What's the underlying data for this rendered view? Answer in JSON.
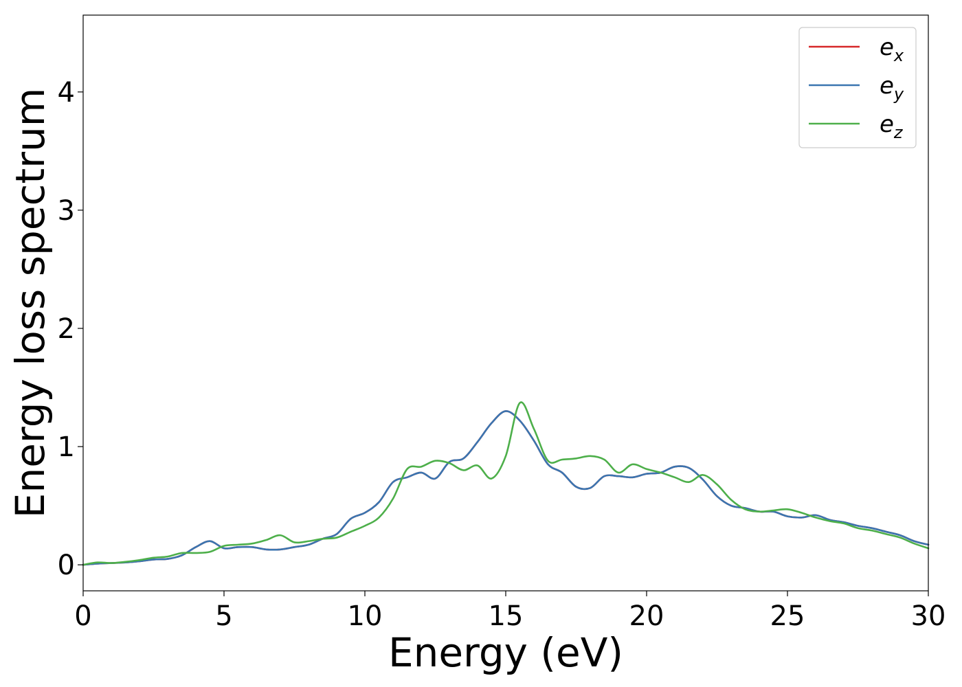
{
  "chart_data": {
    "type": "line",
    "xlabel": "Energy (eV)",
    "ylabel": "Energy loss spectrum",
    "xlim": [
      0,
      30
    ],
    "ylim": [
      -0.22,
      4.65
    ],
    "xticks": [
      0,
      5,
      10,
      15,
      20,
      25,
      30
    ],
    "yticks": [
      0,
      1,
      2,
      3,
      4
    ],
    "xtick_labels": [
      "0",
      "5",
      "10",
      "15",
      "20",
      "25",
      "30"
    ],
    "ytick_labels": [
      "0",
      "1",
      "2",
      "3",
      "4"
    ],
    "grid": false,
    "legend_position": "top-right",
    "series": [
      {
        "name": "e",
        "subscript": "x",
        "color": "#d62728",
        "x": [
          0,
          0.5,
          1,
          1.5,
          2,
          2.5,
          3,
          3.5,
          4,
          4.5,
          5,
          5.5,
          6,
          6.5,
          7,
          7.5,
          8,
          8.5,
          9,
          9.5,
          10,
          10.5,
          11,
          11.5,
          12,
          12.5,
          13,
          13.5,
          14,
          14.5,
          15,
          15.5,
          16,
          16.5,
          17,
          17.5,
          18,
          18.5,
          19,
          19.5,
          20,
          20.5,
          21,
          21.5,
          22,
          22.5,
          23,
          23.5,
          24,
          24.5,
          25,
          25.5,
          26,
          26.5,
          27,
          27.5,
          28,
          28.5,
          29,
          29.5,
          30
        ],
        "y": [
          0.0,
          0.01,
          0.015,
          0.02,
          0.03,
          0.045,
          0.05,
          0.08,
          0.15,
          0.2,
          0.14,
          0.15,
          0.15,
          0.13,
          0.13,
          0.15,
          0.17,
          0.22,
          0.26,
          0.39,
          0.44,
          0.53,
          0.7,
          0.74,
          0.78,
          0.73,
          0.87,
          0.9,
          1.04,
          1.2,
          1.3,
          1.22,
          1.05,
          0.85,
          0.78,
          0.66,
          0.65,
          0.75,
          0.75,
          0.74,
          0.77,
          0.78,
          0.83,
          0.82,
          0.72,
          0.58,
          0.5,
          0.48,
          0.45,
          0.45,
          0.41,
          0.4,
          0.42,
          0.38,
          0.36,
          0.33,
          0.31,
          0.28,
          0.25,
          0.2,
          0.17
        ]
      },
      {
        "name": "e",
        "subscript": "y",
        "color": "#3a75b0",
        "x": [
          0,
          0.5,
          1,
          1.5,
          2,
          2.5,
          3,
          3.5,
          4,
          4.5,
          5,
          5.5,
          6,
          6.5,
          7,
          7.5,
          8,
          8.5,
          9,
          9.5,
          10,
          10.5,
          11,
          11.5,
          12,
          12.5,
          13,
          13.5,
          14,
          14.5,
          15,
          15.5,
          16,
          16.5,
          17,
          17.5,
          18,
          18.5,
          19,
          19.5,
          20,
          20.5,
          21,
          21.5,
          22,
          22.5,
          23,
          23.5,
          24,
          24.5,
          25,
          25.5,
          26,
          26.5,
          27,
          27.5,
          28,
          28.5,
          29,
          29.5,
          30
        ],
        "y": [
          0.0,
          0.01,
          0.015,
          0.02,
          0.03,
          0.045,
          0.05,
          0.08,
          0.15,
          0.2,
          0.14,
          0.15,
          0.15,
          0.13,
          0.13,
          0.15,
          0.17,
          0.22,
          0.26,
          0.39,
          0.44,
          0.53,
          0.7,
          0.74,
          0.78,
          0.73,
          0.87,
          0.9,
          1.04,
          1.2,
          1.3,
          1.22,
          1.05,
          0.85,
          0.78,
          0.66,
          0.65,
          0.75,
          0.75,
          0.74,
          0.77,
          0.78,
          0.83,
          0.82,
          0.72,
          0.58,
          0.5,
          0.48,
          0.45,
          0.45,
          0.41,
          0.4,
          0.42,
          0.38,
          0.36,
          0.33,
          0.31,
          0.28,
          0.25,
          0.2,
          0.17
        ]
      },
      {
        "name": "e",
        "subscript": "z",
        "color": "#4daf4a",
        "x": [
          0,
          0.5,
          1,
          1.5,
          2,
          2.5,
          3,
          3.5,
          4,
          4.5,
          5,
          5.5,
          6,
          6.5,
          7,
          7.5,
          8,
          8.5,
          9,
          9.5,
          10,
          10.5,
          11,
          11.5,
          12,
          12.5,
          13,
          13.5,
          14,
          14.5,
          15,
          15.5,
          16,
          16.5,
          17,
          17.5,
          18,
          18.5,
          19,
          19.5,
          20,
          20.5,
          21,
          21.5,
          22,
          22.5,
          23,
          23.5,
          24,
          24.5,
          25,
          25.5,
          26,
          26.5,
          27,
          27.5,
          28,
          28.5,
          29,
          29.5,
          30
        ],
        "y": [
          0.0,
          0.02,
          0.015,
          0.025,
          0.04,
          0.06,
          0.07,
          0.1,
          0.1,
          0.11,
          0.16,
          0.17,
          0.18,
          0.21,
          0.25,
          0.19,
          0.2,
          0.22,
          0.23,
          0.28,
          0.33,
          0.4,
          0.56,
          0.81,
          0.83,
          0.88,
          0.86,
          0.8,
          0.84,
          0.73,
          0.92,
          1.37,
          1.15,
          0.88,
          0.89,
          0.9,
          0.92,
          0.89,
          0.78,
          0.85,
          0.81,
          0.78,
          0.74,
          0.7,
          0.76,
          0.68,
          0.55,
          0.47,
          0.45,
          0.46,
          0.47,
          0.44,
          0.4,
          0.37,
          0.35,
          0.31,
          0.29,
          0.26,
          0.23,
          0.18,
          0.14
        ]
      }
    ]
  }
}
